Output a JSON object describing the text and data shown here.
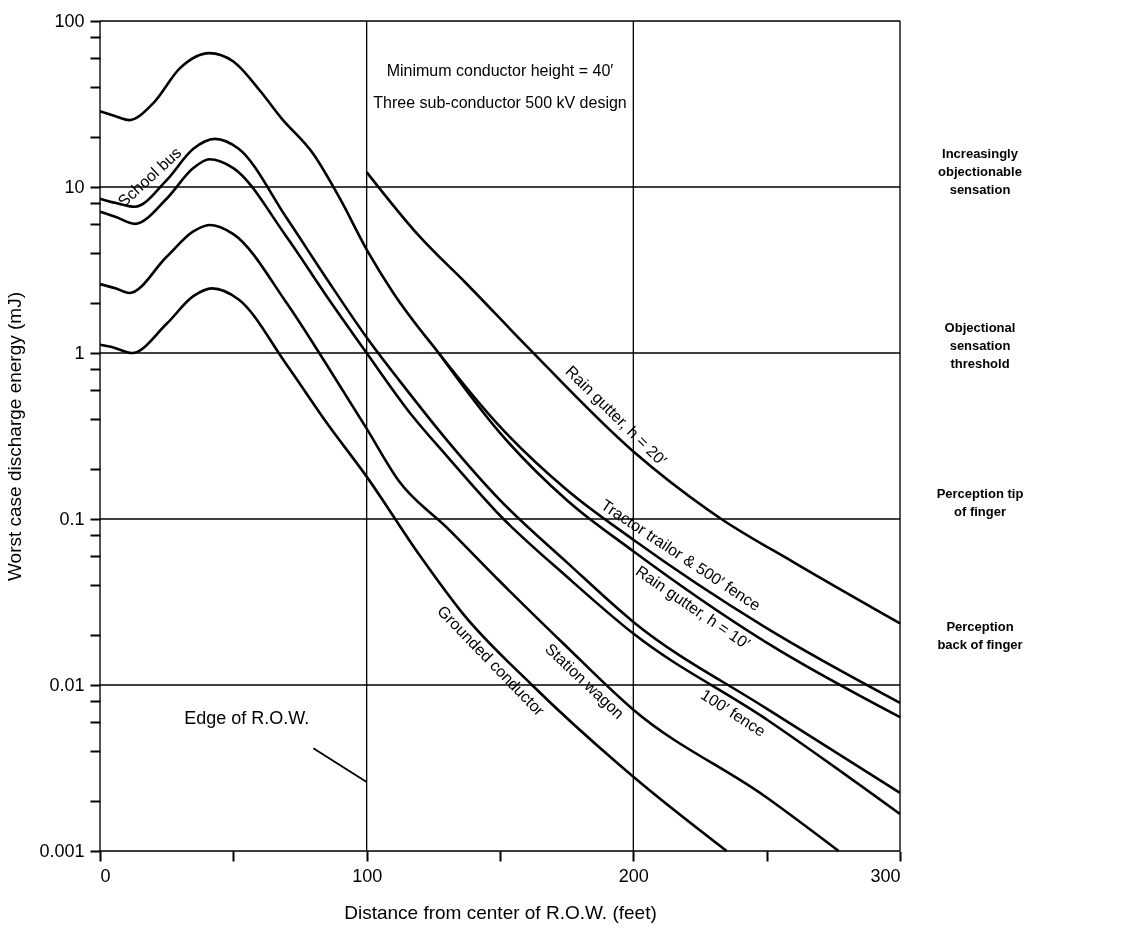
{
  "chart_data": {
    "type": "line",
    "xlabel": "Distance from center of R.O.W. (feet)",
    "ylabel": "Worst case discharge energy (mJ)",
    "log": "y",
    "grid": true,
    "line_style": "solid",
    "xlim": [
      0,
      300
    ],
    "xticks": [
      0,
      {
        "value": 50,
        "label": null
      },
      100,
      {
        "value": 150,
        "label": null
      },
      200,
      {
        "value": 250,
        "label": null
      },
      300
    ],
    "ylim": [
      0.001,
      100
    ],
    "yticks": [
      0.001,
      {
        "value": 0.002,
        "label": null
      },
      {
        "value": 0.004,
        "label": null
      },
      {
        "value": 0.006,
        "label": null
      },
      {
        "value": 0.008,
        "label": null
      },
      0.01,
      {
        "value": 0.02,
        "label": null
      },
      {
        "value": 0.04,
        "label": null
      },
      {
        "value": 0.06,
        "label": null
      },
      {
        "value": 0.08,
        "label": null
      },
      0.1,
      {
        "value": 0.2,
        "label": null
      },
      {
        "value": 0.4,
        "label": null
      },
      {
        "value": 0.6,
        "label": null
      },
      {
        "value": 0.8,
        "label": null
      },
      1,
      {
        "value": 2,
        "label": null
      },
      {
        "value": 4,
        "label": null
      },
      {
        "value": 6,
        "label": null
      },
      {
        "value": 8,
        "label": null
      },
      10,
      {
        "value": 20,
        "label": null
      },
      {
        "value": 40,
        "label": null
      },
      {
        "value": 60,
        "label": null
      },
      {
        "value": 80,
        "label": null
      },
      100
    ],
    "series": [
      {
        "name": "Tractor trailor & 500′ fence",
        "color": "#000000",
        "x": [
          0,
          5,
          11,
          20,
          30,
          41,
          50,
          60,
          68,
          80,
          90,
          100,
          110,
          127,
          150,
          175,
          200,
          250,
          300
        ],
        "values": [
          28.6,
          27,
          25.3,
          32,
          52,
          64,
          57,
          38,
          26,
          15.8,
          8.5,
          4.2,
          2.3,
          1.0,
          0.36,
          0.15,
          0.075,
          0.022,
          0.0078
        ]
      },
      {
        "name": "Rain gutter, h = 10′",
        "color": "#000000",
        "x": [
          127,
          150,
          175,
          200,
          250,
          300
        ],
        "values": [
          1.0,
          0.33,
          0.13,
          0.064,
          0.018,
          0.0064
        ]
      },
      {
        "name": "Rain gutter, h = 20′",
        "color": "#000000",
        "x": [
          100,
          120,
          137,
          160,
          200,
          233,
          260,
          300
        ],
        "values": [
          12.3,
          5.0,
          2.66,
          1.1,
          0.255,
          0.1,
          0.055,
          0.0235
        ]
      },
      {
        "name": "School bus",
        "color": "#000000",
        "x": [
          0,
          6,
          13,
          25,
          35,
          43,
          52,
          70,
          85,
          100,
          115,
          130,
          150,
          175,
          200,
          250,
          300
        ],
        "values": [
          8.5,
          8.0,
          7.6,
          11,
          17,
          19.5,
          17,
          6.5,
          2.8,
          1.24,
          0.6,
          0.3,
          0.13,
          0.055,
          0.024,
          0.0072,
          0.00224
        ]
      },
      {
        "name": "100′ fence",
        "color": "#000000",
        "x": [
          0,
          6,
          13,
          25,
          35,
          41,
          50,
          70,
          85,
          100,
          117,
          130,
          150,
          175,
          200,
          250,
          300
        ],
        "values": [
          7.1,
          6.6,
          6.0,
          8.5,
          13,
          14.7,
          13,
          5.0,
          2.2,
          1.0,
          0.42,
          0.24,
          0.105,
          0.045,
          0.0204,
          0.0062,
          0.00167
        ]
      },
      {
        "name": "Station wagon",
        "color": "#000000",
        "x": [
          0,
          6,
          11,
          25,
          35,
          41,
          50,
          70,
          85,
          100,
          112,
          130,
          150,
          175,
          200,
          250,
          277
        ],
        "values": [
          2.6,
          2.45,
          2.3,
          3.8,
          5.4,
          5.9,
          5.2,
          2.0,
          0.85,
          0.35,
          0.17,
          0.089,
          0.042,
          0.017,
          0.0071,
          0.0021,
          0.001
        ]
      },
      {
        "name": "Grounded conductor",
        "color": "#000000",
        "x": [
          0,
          5,
          12,
          25,
          35,
          42,
          52,
          70,
          85,
          100,
          120,
          136,
          162,
          200,
          235
        ],
        "values": [
          1.12,
          1.08,
          1.0,
          1.5,
          2.2,
          2.45,
          2.1,
          0.85,
          0.38,
          0.18,
          0.06,
          0.027,
          0.01,
          0.0028,
          0.001
        ]
      }
    ],
    "annotations": [
      "Minimum conductor height = 40′",
      "Three sub-conductor 500 kV design",
      "Edge of R.O.W.",
      "Increasingly objectionable sensation",
      "Objectional sensation threshold",
      "Perception tip of finger",
      "Perception back of finger"
    ]
  }
}
